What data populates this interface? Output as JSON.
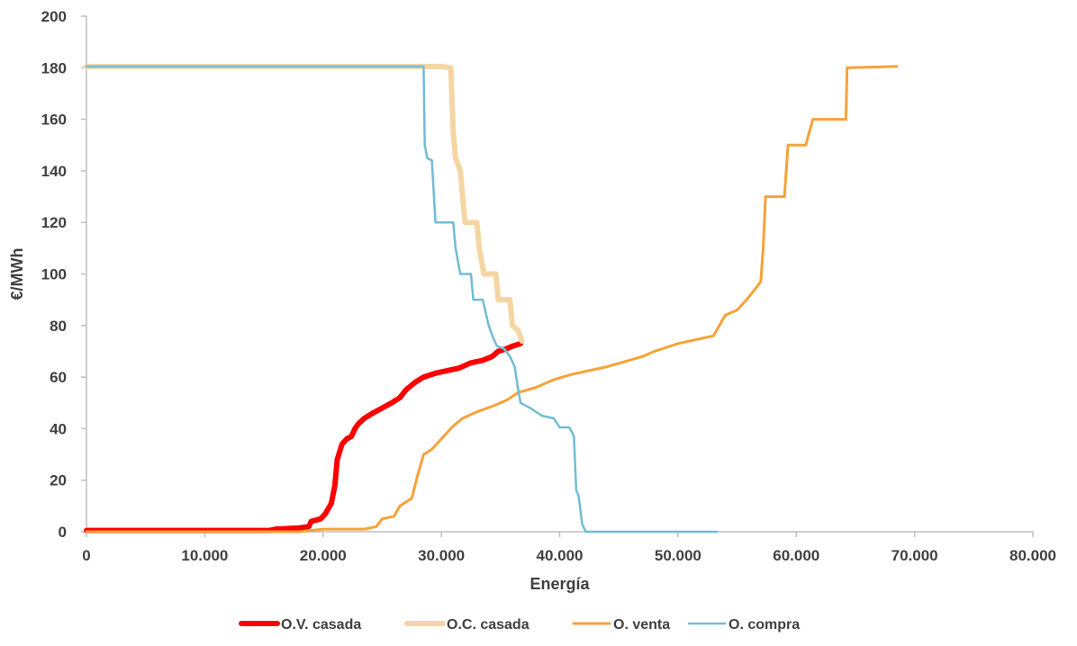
{
  "chart_data": {
    "type": "line",
    "title": "",
    "xlabel": "Energía",
    "ylabel": "€/MWh",
    "xlim": [
      0,
      80000
    ],
    "ylim": [
      0,
      200
    ],
    "x_ticks": [
      0,
      10000,
      20000,
      30000,
      40000,
      50000,
      60000,
      70000,
      80000
    ],
    "x_tick_labels": [
      "0",
      "10.000",
      "20.000",
      "30.000",
      "40.000",
      "50.000",
      "60.000",
      "70.000",
      "80.000"
    ],
    "y_ticks": [
      0,
      20,
      40,
      60,
      80,
      100,
      120,
      140,
      160,
      180,
      200
    ],
    "y_tick_labels": [
      "0",
      "20",
      "40",
      "60",
      "80",
      "100",
      "120",
      "140",
      "160",
      "180",
      "200"
    ],
    "grid": false,
    "legend_position": "bottom",
    "series": [
      {
        "name": "O.V. casada",
        "color": "#ff0000",
        "width": 6,
        "points": [
          [
            0,
            0.5
          ],
          [
            15500,
            0.5
          ],
          [
            16000,
            1
          ],
          [
            18000,
            1.5
          ],
          [
            18800,
            2
          ],
          [
            19000,
            4
          ],
          [
            19800,
            5
          ],
          [
            20200,
            7
          ],
          [
            20700,
            11
          ],
          [
            21000,
            18
          ],
          [
            21200,
            28
          ],
          [
            21400,
            31
          ],
          [
            21600,
            34
          ],
          [
            22000,
            36
          ],
          [
            22400,
            37
          ],
          [
            22700,
            40
          ],
          [
            23000,
            42
          ],
          [
            23500,
            44
          ],
          [
            24200,
            46
          ],
          [
            25000,
            48
          ],
          [
            25800,
            50
          ],
          [
            26500,
            52
          ],
          [
            27000,
            55
          ],
          [
            27800,
            58
          ],
          [
            28500,
            60
          ],
          [
            29500,
            61.5
          ],
          [
            30500,
            62.5
          ],
          [
            31500,
            63.5
          ],
          [
            32500,
            65.5
          ],
          [
            33500,
            66.5
          ],
          [
            34300,
            68
          ],
          [
            34800,
            70
          ],
          [
            35500,
            71
          ],
          [
            36000,
            72
          ],
          [
            36700,
            73
          ]
        ]
      },
      {
        "name": "O.C. casada",
        "color": "#f5d6a3",
        "width": 6,
        "points": [
          [
            0,
            180.5
          ],
          [
            30000,
            180.5
          ],
          [
            30800,
            180
          ],
          [
            31000,
            155
          ],
          [
            31200,
            145
          ],
          [
            31600,
            140
          ],
          [
            31800,
            130
          ],
          [
            32000,
            120
          ],
          [
            33000,
            120
          ],
          [
            33200,
            110
          ],
          [
            33600,
            100
          ],
          [
            34600,
            100
          ],
          [
            34800,
            90
          ],
          [
            35800,
            90
          ],
          [
            36000,
            80
          ],
          [
            36500,
            78
          ],
          [
            36800,
            74
          ]
        ]
      },
      {
        "name": "O. venta",
        "color": "#f7a239",
        "width": 3,
        "points": [
          [
            0,
            0
          ],
          [
            18000,
            0
          ],
          [
            20000,
            1
          ],
          [
            23500,
            1
          ],
          [
            24500,
            2
          ],
          [
            25000,
            5
          ],
          [
            26000,
            6
          ],
          [
            26500,
            10
          ],
          [
            27500,
            13
          ],
          [
            28000,
            22
          ],
          [
            28500,
            30
          ],
          [
            29200,
            32
          ],
          [
            30000,
            36
          ],
          [
            31000,
            41
          ],
          [
            31800,
            44
          ],
          [
            33000,
            46.5
          ],
          [
            34500,
            49
          ],
          [
            35500,
            51
          ],
          [
            36500,
            54
          ],
          [
            38000,
            56
          ],
          [
            39500,
            59
          ],
          [
            41000,
            61
          ],
          [
            42500,
            62.5
          ],
          [
            44000,
            64
          ],
          [
            45500,
            66
          ],
          [
            47000,
            68
          ],
          [
            48000,
            70
          ],
          [
            50000,
            73
          ],
          [
            52000,
            75
          ],
          [
            53000,
            76
          ],
          [
            53500,
            80
          ],
          [
            54000,
            84
          ],
          [
            55000,
            86
          ],
          [
            55800,
            90
          ],
          [
            56500,
            94
          ],
          [
            57000,
            97
          ],
          [
            57200,
            110
          ],
          [
            57400,
            130
          ],
          [
            59000,
            130
          ],
          [
            59300,
            150
          ],
          [
            60800,
            150
          ],
          [
            61100,
            155
          ],
          [
            61400,
            160
          ],
          [
            64200,
            160
          ],
          [
            64300,
            180
          ],
          [
            68500,
            180.5
          ]
        ]
      },
      {
        "name": "O. compra",
        "color": "#72bcd4",
        "width": 2.5,
        "points": [
          [
            0,
            180.5
          ],
          [
            28500,
            180.5
          ],
          [
            28600,
            150
          ],
          [
            28800,
            145
          ],
          [
            29200,
            144
          ],
          [
            29500,
            120
          ],
          [
            31000,
            120
          ],
          [
            31200,
            110
          ],
          [
            31600,
            100
          ],
          [
            32500,
            100
          ],
          [
            32700,
            90
          ],
          [
            33500,
            90
          ],
          [
            34000,
            80
          ],
          [
            34400,
            75
          ],
          [
            34700,
            72
          ],
          [
            35300,
            71
          ],
          [
            35800,
            68
          ],
          [
            36200,
            64
          ],
          [
            36500,
            55
          ],
          [
            36700,
            50
          ],
          [
            37500,
            48
          ],
          [
            38500,
            45
          ],
          [
            39500,
            44
          ],
          [
            40000,
            40.5
          ],
          [
            40800,
            40.5
          ],
          [
            41000,
            39
          ],
          [
            41200,
            37
          ],
          [
            41400,
            16
          ],
          [
            41600,
            14
          ],
          [
            41900,
            3
          ],
          [
            42200,
            0
          ],
          [
            53300,
            0
          ]
        ]
      }
    ]
  }
}
